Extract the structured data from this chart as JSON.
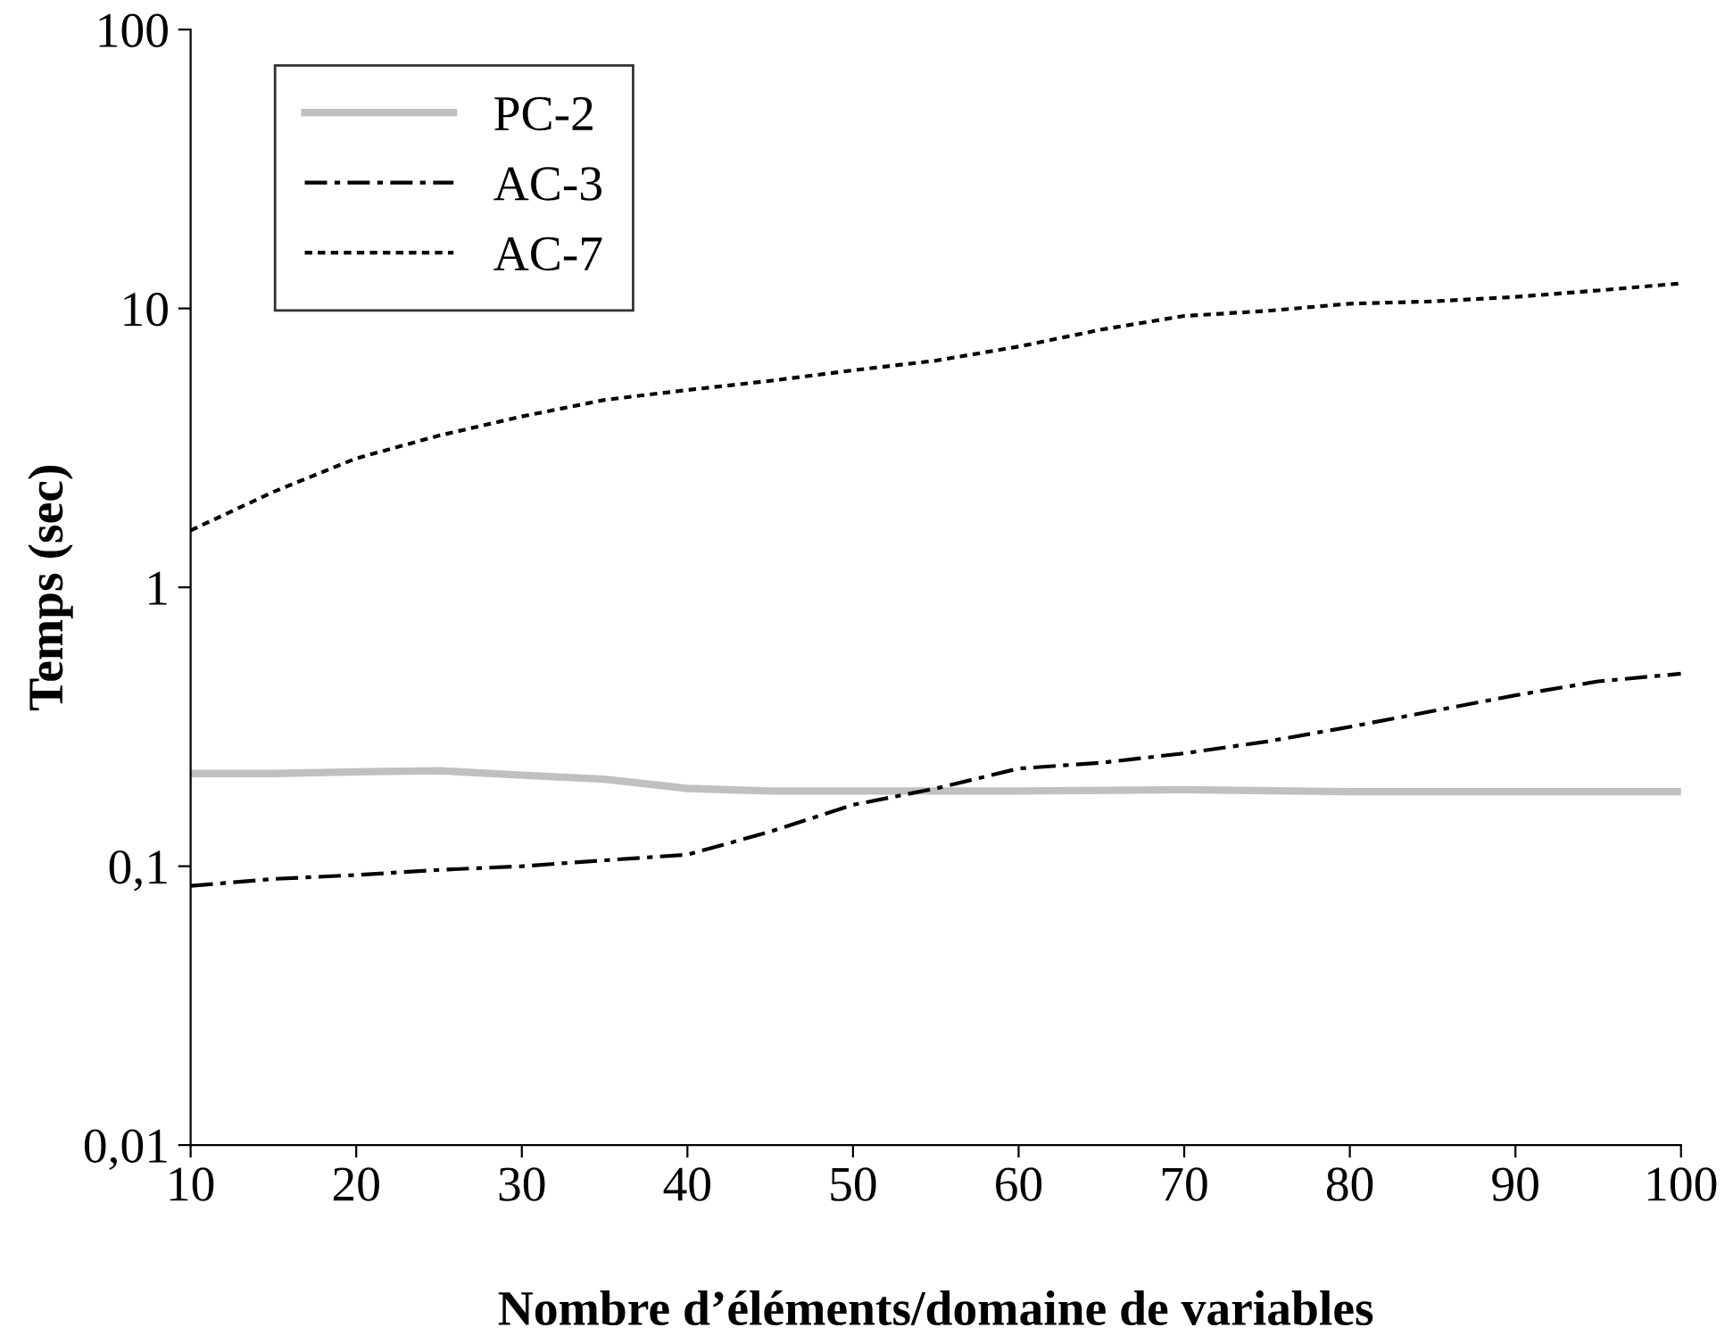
{
  "chart_data": {
    "type": "line",
    "xlabel": "Nombre d’éléments/domaine de variables",
    "ylabel": "Temps (sec)",
    "log": "y",
    "xlim": [
      10,
      100
    ],
    "xticks": [
      10,
      20,
      30,
      40,
      50,
      60,
      70,
      80,
      90,
      100
    ],
    "ylim": [
      0.01,
      100
    ],
    "yticks": [
      {
        "value": 0.01,
        "label": "0,01"
      },
      {
        "value": 0.1,
        "label": "0,1"
      },
      1,
      10,
      100
    ],
    "grid": false,
    "legend": "top left",
    "marker": "none",
    "series": [
      {
        "name": "PC-2",
        "color": "#c0c0c0",
        "line_style": "solid",
        "x": [
          10,
          15,
          20,
          25,
          30,
          35,
          40,
          45,
          50,
          60,
          70,
          80,
          90,
          100
        ],
        "values": [
          0.215,
          0.215,
          0.218,
          0.22,
          0.212,
          0.205,
          0.19,
          0.186,
          0.186,
          0.186,
          0.188,
          0.185,
          0.185,
          0.185
        ]
      },
      {
        "name": "AC-3",
        "color": "#000000",
        "line_style": "dashdot",
        "x": [
          10,
          15,
          20,
          25,
          30,
          35,
          40,
          45,
          50,
          55,
          60,
          65,
          70,
          75,
          80,
          85,
          90,
          95,
          100
        ],
        "values": [
          0.085,
          0.09,
          0.093,
          0.097,
          0.1,
          0.105,
          0.11,
          0.133,
          0.166,
          0.19,
          0.224,
          0.235,
          0.254,
          0.28,
          0.316,
          0.36,
          0.41,
          0.46,
          0.49
        ]
      },
      {
        "name": "AC-7",
        "color": "#000000",
        "line_style": "dotted",
        "x": [
          10,
          15,
          20,
          25,
          30,
          35,
          40,
          45,
          50,
          55,
          60,
          65,
          70,
          75,
          80,
          85,
          90,
          95,
          100
        ],
        "values": [
          1.6,
          2.2,
          2.9,
          3.5,
          4.1,
          4.7,
          5.1,
          5.5,
          6.0,
          6.5,
          7.3,
          8.4,
          9.4,
          9.8,
          10.4,
          10.6,
          11,
          11.6,
          12.3
        ]
      }
    ]
  }
}
